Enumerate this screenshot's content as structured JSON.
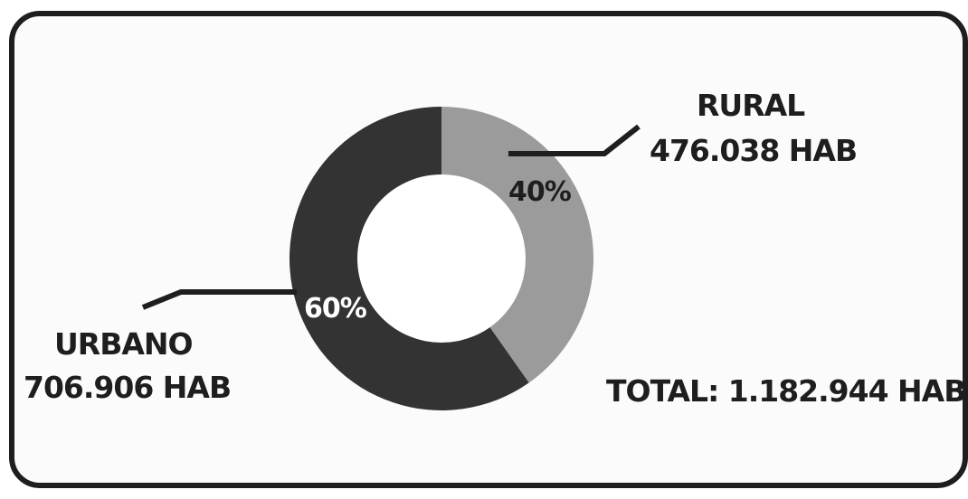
{
  "chart_data": {
    "type": "pie",
    "series": [
      {
        "label_name": "RURAL",
        "label_value": "476.038 HAB",
        "percent_label": "40%",
        "value": 476038,
        "color": "#9b9b9b",
        "pct_color": "#1e1e1e"
      },
      {
        "label_name": "URBANO",
        "label_value": "706.906 HAB",
        "percent_label": "60%",
        "value": 706906,
        "color": "#333333",
        "pct_color": "#ffffff"
      }
    ],
    "total_label": "TOTAL: 1.182.944 HAB"
  }
}
